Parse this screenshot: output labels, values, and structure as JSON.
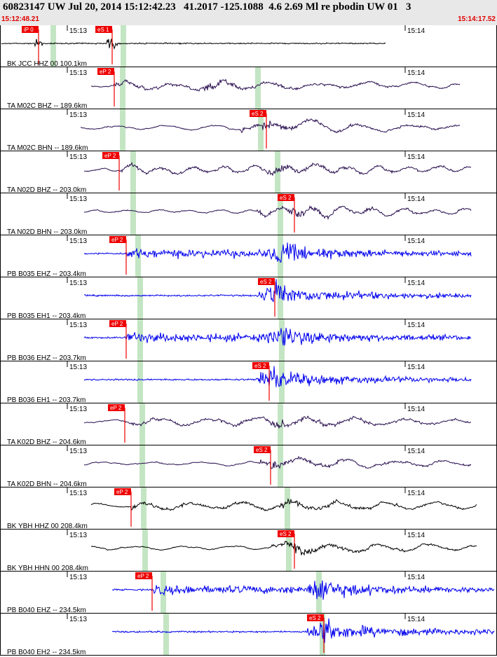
{
  "header": {
    "title": "60823147 UW Jul 20, 2014 15:12:42.23   41.2017 -125.1088  4.6 2.69 Ml re pbodin UW 01   3",
    "start_time": "15:12:48.21",
    "end_time": "15:14:17.52"
  },
  "colors": {
    "header_bg": "#e8e8e8",
    "time_red": "#e00000",
    "pick_red": "#ee0000",
    "window_green": "#b8e0b8",
    "bh_trace": "#2a1050",
    "eh_trace": "#0000ee",
    "hh_trace": "#000000"
  },
  "chart_data": {
    "type": "line",
    "title": "60823147 UW Jul 20, 2014 15:12:42.23   41.2017 -125.1088  4.6 2.69 Ml re pbodin UW 01   3",
    "xlabel": "",
    "ylabel": "",
    "x_start": "15:12:48.21",
    "x_end": "15:14:17.52",
    "ticks": [
      "15:13",
      "15:14"
    ],
    "traces": [
      {
        "label": "BK JCC HHZ 00 100.1km",
        "color": "#000000",
        "kind": "jcc",
        "picks": [
          "iP 0",
          "eS 1"
        ],
        "onset": 0.15,
        "spike": 0.34,
        "end": 0.78
      },
      {
        "label": "TA M02C BHZ -- 189.6km",
        "color": "#2a1050",
        "kind": "long",
        "picks": [
          "eP 2"
        ],
        "onset": 0.23,
        "spike": 0.53,
        "end": 0.93
      },
      {
        "label": "TA M02C BHN -- 189.6km",
        "color": "#2a1050",
        "kind": "long",
        "picks": [
          "eS 2"
        ],
        "onset": 0.23,
        "spike": 0.53,
        "end": 0.93
      },
      {
        "label": "TA N02D BHZ -- 203.0km",
        "color": "#2a1050",
        "kind": "medium",
        "picks": [
          "eP 2"
        ],
        "onset": 0.24,
        "spike": 0.56,
        "end": 0.95
      },
      {
        "label": "TA N02D BHN -- 203.0km",
        "color": "#2a1050",
        "kind": "medium",
        "picks": [
          "eS 2"
        ],
        "onset": 0.24,
        "spike": 0.56,
        "end": 0.95
      },
      {
        "label": "PB B035 EHZ -- 203.4km",
        "color": "#0000ee",
        "kind": "hf",
        "picks": [
          "eP 2"
        ],
        "onset": 0.26,
        "spike": 0.55,
        "end": 0.95
      },
      {
        "label": "PB B035 EH1 -- 203.4km",
        "color": "#0000ee",
        "kind": "hf",
        "picks": [
          "eS 2"
        ],
        "onset": 0.26,
        "spike": 0.55,
        "end": 0.95
      },
      {
        "label": "PB B036 EHZ -- 203.7km",
        "color": "#0000ee",
        "kind": "hf",
        "picks": [
          "eP 2"
        ],
        "onset": 0.26,
        "spike": 0.55,
        "end": 0.95
      },
      {
        "label": "PB B036 EH1 -- 203.7km",
        "color": "#0000ee",
        "kind": "hf",
        "picks": [
          "eS 2"
        ],
        "onset": 0.26,
        "spike": 0.55,
        "end": 0.95
      },
      {
        "label": "TA K02D BHZ -- 204.6km",
        "color": "#2a1050",
        "kind": "long",
        "picks": [
          "eP 2"
        ],
        "onset": 0.26,
        "spike": 0.55,
        "end": 0.95
      },
      {
        "label": "TA K02D BHN -- 204.6km",
        "color": "#2a1050",
        "kind": "long",
        "picks": [
          "eS 2"
        ],
        "onset": 0.26,
        "spike": 0.55,
        "end": 0.95
      },
      {
        "label": "BK YBH HHZ 00 208.4km",
        "color": "#000000",
        "kind": "long",
        "picks": [
          "eP 2"
        ],
        "onset": 0.27,
        "spike": 0.58,
        "end": 0.96
      },
      {
        "label": "BK YBH HHN 00 208.4km",
        "color": "#000000",
        "kind": "long",
        "picks": [
          "eS 2"
        ],
        "onset": 0.27,
        "spike": 0.58,
        "end": 0.96
      },
      {
        "label": "PB B040 EHZ -- 234.5km",
        "color": "#0000ee",
        "kind": "hf",
        "picks": [
          "eP 2"
        ],
        "onset": 0.31,
        "spike": 0.64,
        "end": 1.0
      },
      {
        "label": "PB B040 EH2 -- 234.5km",
        "color": "#0000ee",
        "kind": "hf",
        "picks": [
          "eS 2"
        ],
        "onset": 0.31,
        "spike": 0.64,
        "end": 1.0
      }
    ]
  }
}
